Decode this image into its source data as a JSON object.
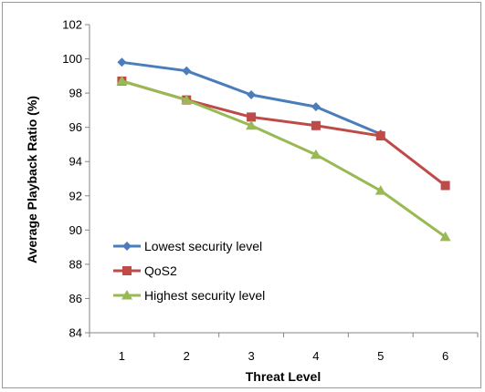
{
  "chart_data": {
    "type": "line",
    "xlabel": "Threat Level",
    "ylabel": "Average Playback Ratio (%)",
    "categories": [
      "1",
      "2",
      "3",
      "4",
      "5",
      "6"
    ],
    "ylim": [
      84,
      102
    ],
    "yticks": [
      "84",
      "86",
      "88",
      "90",
      "92",
      "94",
      "96",
      "98",
      "100",
      "102"
    ],
    "grid": false,
    "legend_position": "bottom-left",
    "series": [
      {
        "name": "Lowest security level",
        "color": "#4a7ebb",
        "marker": "diamond",
        "values": [
          99.8,
          99.3,
          97.9,
          97.2,
          95.6,
          null
        ]
      },
      {
        "name": "QoS2",
        "color": "#be4b48",
        "marker": "square",
        "values": [
          98.7,
          97.6,
          96.6,
          96.1,
          95.5,
          92.6
        ]
      },
      {
        "name": "Highest security level",
        "color": "#98b954",
        "marker": "triangle",
        "values": [
          98.7,
          97.6,
          96.1,
          94.4,
          92.3,
          89.6
        ]
      }
    ]
  }
}
